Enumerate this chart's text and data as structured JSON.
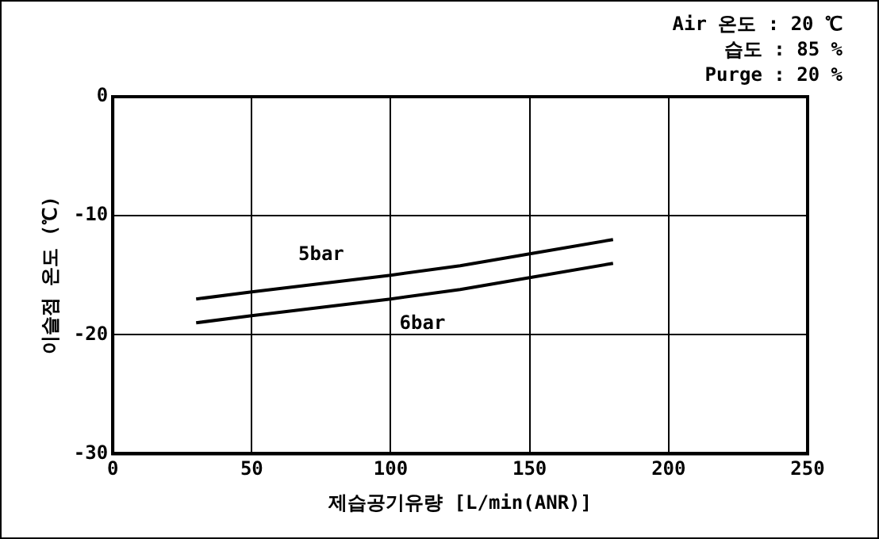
{
  "chart_data": {
    "type": "line",
    "xlabel": "제습공기유량 [L/min(ANR)]",
    "ylabel": "이슬점 온도 (℃)",
    "annotations": [
      "Air 온도 : 20 ℃",
      "습도 : 85 %",
      "Purge : 20 %"
    ],
    "series": [
      {
        "name": "5bar",
        "color": "#000000",
        "x": [
          30,
          50,
          75,
          100,
          125,
          150,
          180
        ],
        "values": [
          -17,
          -16.4,
          -15.7,
          -15,
          -14.2,
          -13.2,
          -12
        ]
      },
      {
        "name": "6bar",
        "color": "#000000",
        "x": [
          30,
          50,
          75,
          100,
          125,
          150,
          180
        ],
        "values": [
          -19,
          -18.4,
          -17.7,
          -17,
          -16.2,
          -15.2,
          -14
        ]
      }
    ],
    "xlim": [
      0,
      250
    ],
    "xticks": [
      0,
      50,
      100,
      150,
      200,
      250
    ],
    "ylim": [
      -30,
      0
    ],
    "yticks": [
      0,
      -10,
      -20,
      -30
    ],
    "grid": true,
    "legend": false,
    "marker": "none",
    "line_style": "solid"
  }
}
